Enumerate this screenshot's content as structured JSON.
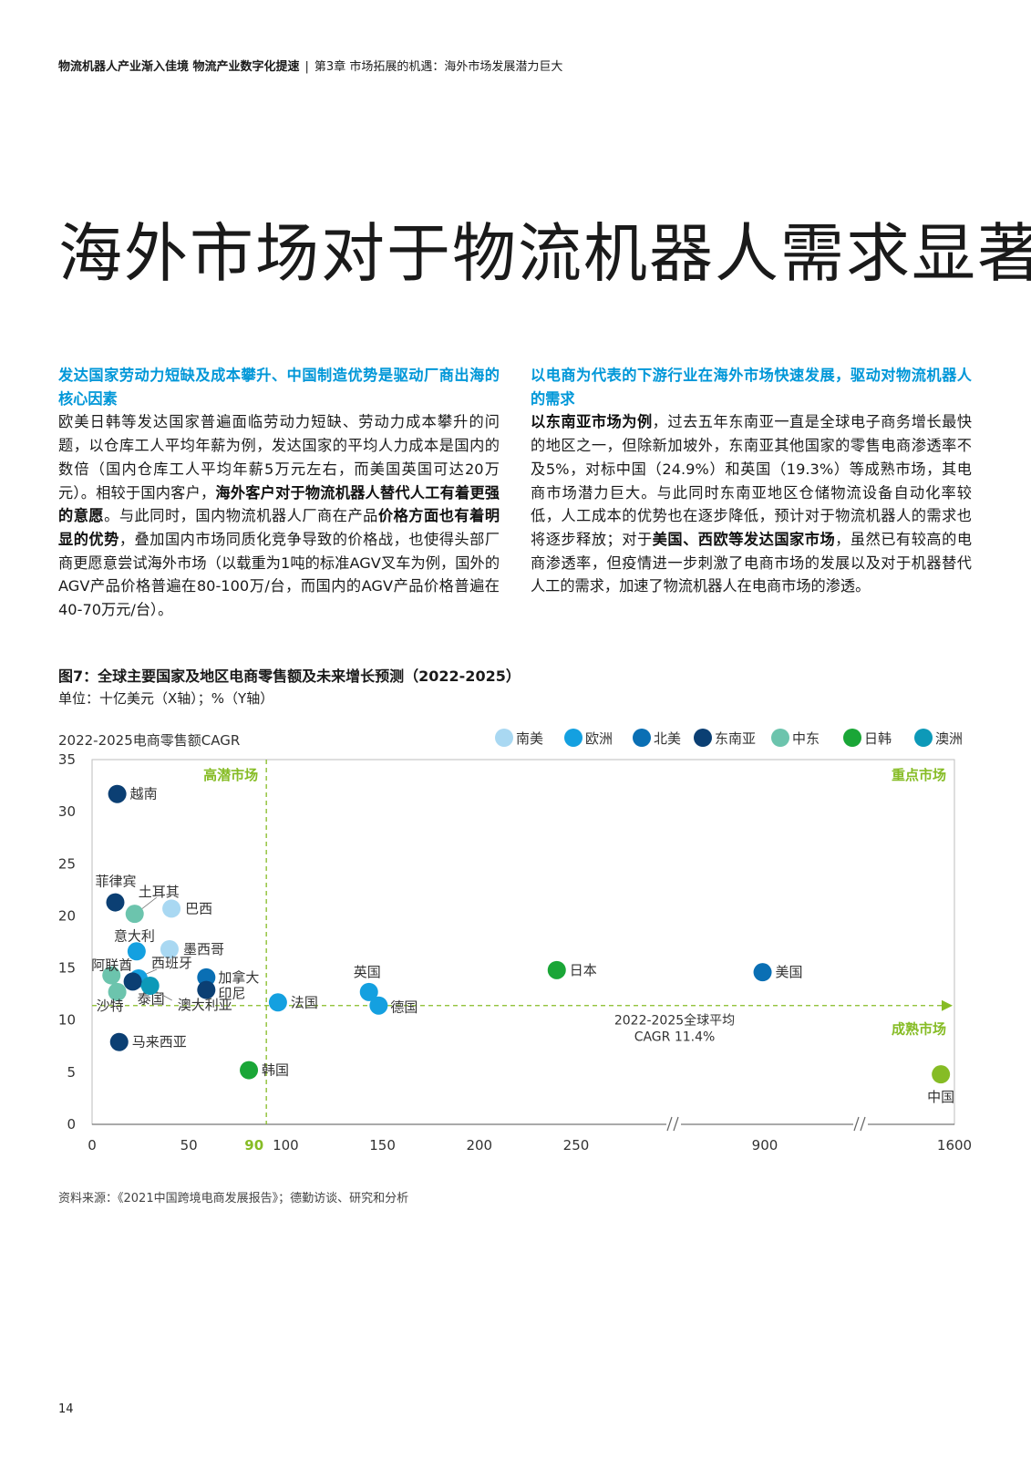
{
  "header": {
    "title_bold": "物流机器人产业渐入佳境 物流产业数字化提速",
    "separator": "|",
    "chapter": "第3章 市场拓展的机遇：海外市场发展潜力巨大"
  },
  "page_title": "海外市场对于物流机器人需求显著",
  "left_col": {
    "heading": "发达国家劳动力短缺及成本攀升、中国制造优势是驱动厂商出海的核心因素",
    "text_1": "欧美日韩等发达国家普遍面临劳动力短缺、劳动力成本攀升的问题，以仓库工人平均年薪为例，发达国家的平均人力成本是国内的数倍（国内仓库工人平均年薪5万元左右，而美国英国可达20万元）。相较于国内客户，",
    "bold_1": "海外客户对于物流机器人替代人工有着更强的意愿",
    "text_2": "。与此同时，国内物流机器人厂商在产品",
    "bold_2": "价格方面也有着明显的优势",
    "text_3": "，叠加国内市场同质化竞争导致的价格战，也使得头部厂商更愿意尝试海外市场（以载重为1吨的标准AGV叉车为例，国外的AGV产品价格普遍在80-100万/台，而国内的AGV产品价格普遍在40-70万元/台）。"
  },
  "right_col": {
    "heading": "以电商为代表的下游行业在海外市场快速发展，驱动对物流机器人的需求",
    "bold_1": "以东南亚市场为例",
    "text_1": "，过去五年东南亚一直是全球电子商务增长最快的地区之一，但除新加坡外，东南亚其他国家的零售电商渗透率不及5%，对标中国（24.9%）和英国（19.3%）等成熟市场，其电商市场潜力巨大。与此同时东南亚地区仓储物流设备自动化率较低，人工成本的优势也在逐步降低，预计对于物流机器人的需求也将逐步释放；对于",
    "bold_2": "美国、西欧等发达国家市场",
    "text_2": "，虽然已有较高的电商渗透率，但疫情进一步刺激了电商市场的发展以及对于机器替代人工的需求，加速了物流机器人在电商市场的渗透。"
  },
  "figure": {
    "title": "图7：全球主要国家及地区电商零售额及未来增长预测（2022-2025）",
    "unit": "单位：十亿美元（X轴）；%（Y轴）"
  },
  "chart_data": {
    "type": "scatter",
    "ylabel": "2022-2025电商零售额CAGR",
    "ylim": [
      0,
      35
    ],
    "yticks": [
      0,
      5,
      10,
      15,
      20,
      25,
      30,
      35
    ],
    "xticks": [
      "0",
      "50",
      "100",
      "150",
      "200",
      "250",
      "900",
      "1600"
    ],
    "x_break_note": "axis broken between 250 and 900, and between 900 and 1600",
    "x_threshold_label": "90",
    "x_threshold": 90,
    "y_threshold": 11.4,
    "avg_label_1": "2022-2025全球平均",
    "avg_label_2": "CAGR 11.4%",
    "quadrants": {
      "top_left": "高潜市场",
      "top_right": "重点市场",
      "bottom_right": "成熟市场"
    },
    "legend_position": "top-right",
    "regions": [
      {
        "name": "南美",
        "color": "#a9d8f2"
      },
      {
        "name": "欧洲",
        "color": "#14a0e0"
      },
      {
        "name": "北美",
        "color": "#0a6fb4"
      },
      {
        "name": "东南亚",
        "color": "#0b3f73"
      },
      {
        "name": "中东",
        "color": "#6cc4ad"
      },
      {
        "name": "日韩",
        "color": "#1aa637"
      },
      {
        "name": "澳洲",
        "color": "#0d99b8"
      }
    ],
    "points": [
      {
        "name": "越南",
        "region": "东南亚",
        "x": 13,
        "y": 31.7
      },
      {
        "name": "菲律宾",
        "region": "东南亚",
        "x": 12,
        "y": 21.3
      },
      {
        "name": "土耳其",
        "region": "中东",
        "x": 22,
        "y": 20.2
      },
      {
        "name": "巴西",
        "region": "南美",
        "x": 41,
        "y": 20.7
      },
      {
        "name": "意大利",
        "region": "欧洲",
        "x": 23,
        "y": 16.6
      },
      {
        "name": "墨西哥",
        "region": "南美",
        "x": 40,
        "y": 16.8
      },
      {
        "name": "阿联酋",
        "region": "中东",
        "x": 10,
        "y": 14.3
      },
      {
        "name": "西班牙",
        "region": "欧洲",
        "x": 24,
        "y": 14.0
      },
      {
        "name": "加拿大",
        "region": "北美",
        "x": 59,
        "y": 14.1
      },
      {
        "name": "印尼",
        "region": "东南亚",
        "x": 59,
        "y": 12.9
      },
      {
        "name": "沙特",
        "region": "中东",
        "x": 13,
        "y": 12.7
      },
      {
        "name": "泰国",
        "region": "东南亚",
        "x": 21,
        "y": 13.7
      },
      {
        "name": "澳大利亚",
        "region": "澳洲",
        "x": 30,
        "y": 13.3
      },
      {
        "name": "马来西亚",
        "region": "东南亚",
        "x": 14,
        "y": 7.9
      },
      {
        "name": "法国",
        "region": "欧洲",
        "x": 96,
        "y": 11.7
      },
      {
        "name": "英国",
        "region": "欧洲",
        "x": 143,
        "y": 12.7
      },
      {
        "name": "德国",
        "region": "欧洲",
        "x": 148,
        "y": 11.4
      },
      {
        "name": "韩国",
        "region": "日韩",
        "x": 81,
        "y": 5.2
      },
      {
        "name": "日本",
        "region": "日韩",
        "x": 240,
        "y": 14.8
      },
      {
        "name": "美国",
        "region": "北美",
        "x": 885,
        "y": 14.6
      },
      {
        "name": "中国",
        "region": "中国",
        "color": "#86bc25",
        "x": 1550,
        "y": 4.8
      }
    ]
  },
  "source": "资料来源：《2021中国跨境电商发展报告》；德勤访谈、研究和分析",
  "page_number": "14"
}
